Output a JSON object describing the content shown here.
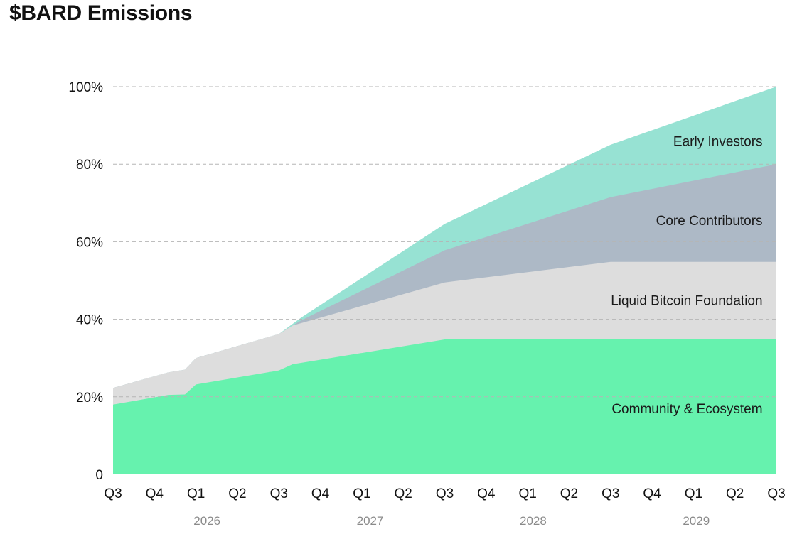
{
  "page": {
    "title": "$BARD Emissions"
  },
  "colors": {
    "community": "#66F2AE",
    "foundation": "#DDDDDD",
    "contributors": "#ADB9C6",
    "investors": "#97E2D3",
    "grid": "#B5B5B5",
    "year": "#8A8A8A"
  },
  "chart_data": {
    "type": "area",
    "stacked": true,
    "title": "$BARD Emissions",
    "xlabel": "",
    "ylabel": "",
    "ylim": [
      0,
      100
    ],
    "y_ticks": [
      {
        "value": 0,
        "label": "0"
      },
      {
        "value": 20,
        "label": "20%"
      },
      {
        "value": 40,
        "label": "40%"
      },
      {
        "value": 60,
        "label": "60%"
      },
      {
        "value": 80,
        "label": "80%"
      },
      {
        "value": 100,
        "label": "100%"
      }
    ],
    "xlim": [
      0,
      12
    ],
    "x_ticks": [
      {
        "value": 0,
        "label": "Q3"
      },
      {
        "value": 0.75,
        "label": "Q4"
      },
      {
        "value": 1.5,
        "label": "Q1"
      },
      {
        "value": 2.25,
        "label": "Q2"
      },
      {
        "value": 3,
        "label": "Q3"
      },
      {
        "value": 3.75,
        "label": "Q4"
      },
      {
        "value": 4.5,
        "label": "Q1"
      },
      {
        "value": 5.25,
        "label": "Q2"
      },
      {
        "value": 6,
        "label": "Q3"
      },
      {
        "value": 6.75,
        "label": "Q4"
      },
      {
        "value": 7.5,
        "label": "Q1"
      },
      {
        "value": 8.25,
        "label": "Q2"
      },
      {
        "value": 9,
        "label": "Q3"
      },
      {
        "value": 9.75,
        "label": "Q4"
      },
      {
        "value": 10.5,
        "label": "Q1"
      },
      {
        "value": 11.25,
        "label": "Q2"
      },
      {
        "value": 12,
        "label": "Q3"
      }
    ],
    "years": [
      {
        "value": 1.7,
        "label": "2026"
      },
      {
        "value": 4.65,
        "label": "2027"
      },
      {
        "value": 7.6,
        "label": "2028"
      },
      {
        "value": 10.55,
        "label": "2029"
      }
    ],
    "series": [
      {
        "name": "Community & Ecosystem",
        "key": "community",
        "label_at": [
          11.75,
          17
        ],
        "points": [
          [
            0,
            18
          ],
          [
            1,
            20.5
          ],
          [
            1.3,
            20.6
          ],
          [
            1.5,
            23.2
          ],
          [
            3,
            26.8
          ],
          [
            3.25,
            28.4
          ],
          [
            6,
            34.8
          ],
          [
            12,
            34.8
          ]
        ]
      },
      {
        "name": "Liquid Bitcoin Foundation",
        "key": "foundation",
        "label_at": [
          11.75,
          45
        ],
        "points": [
          [
            0,
            22.3
          ],
          [
            1,
            26.3
          ],
          [
            1.3,
            27
          ],
          [
            1.5,
            30
          ],
          [
            3,
            36.2
          ],
          [
            3.25,
            38.4
          ],
          [
            6,
            49.5
          ],
          [
            9,
            54.8
          ],
          [
            12,
            54.8
          ]
        ]
      },
      {
        "name": "Core Contributors",
        "key": "contributors",
        "label_at": [
          11.75,
          65.6
        ],
        "points": [
          [
            0,
            22.3
          ],
          [
            1,
            26.3
          ],
          [
            1.3,
            27
          ],
          [
            1.5,
            30
          ],
          [
            3,
            36.2
          ],
          [
            3.4,
            39.7
          ],
          [
            6,
            57.8
          ],
          [
            9,
            71.5
          ],
          [
            12,
            80
          ]
        ]
      },
      {
        "name": "Early Investors",
        "key": "investors",
        "label_at": [
          11.75,
          86
        ],
        "points": [
          [
            0,
            22.3
          ],
          [
            1,
            26.3
          ],
          [
            1.3,
            27
          ],
          [
            1.5,
            30
          ],
          [
            3,
            36.2
          ],
          [
            3.4,
            40.4
          ],
          [
            6,
            64.6
          ],
          [
            9,
            85
          ],
          [
            12,
            100
          ]
        ]
      }
    ]
  }
}
